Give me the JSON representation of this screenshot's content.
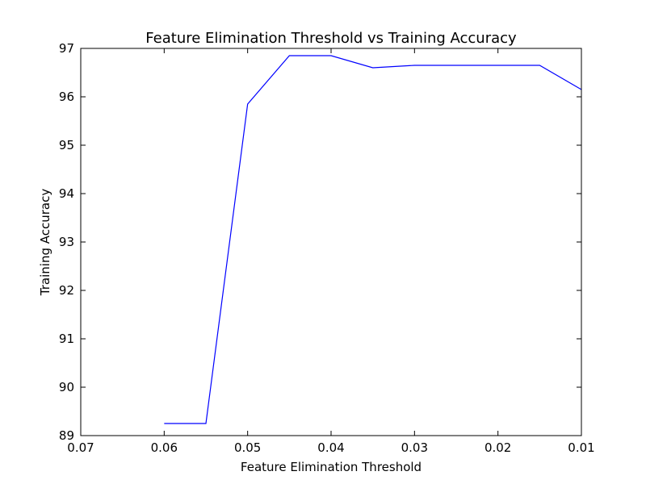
{
  "chart_data": {
    "type": "line",
    "title": "Feature Elimination Threshold vs Training Accuracy",
    "xlabel": "Feature Elimination Threshold",
    "ylabel": "Training Accuracy",
    "xlim": [
      0.07,
      0.01
    ],
    "ylim": [
      89,
      97
    ],
    "x_axis_inverted": true,
    "xticks": [
      0.07,
      0.06,
      0.05,
      0.04,
      0.03,
      0.02,
      0.01
    ],
    "xtick_labels": [
      "0.07",
      "0.06",
      "0.05",
      "0.04",
      "0.03",
      "0.02",
      "0.01"
    ],
    "yticks": [
      89,
      90,
      91,
      92,
      93,
      94,
      95,
      96,
      97
    ],
    "ytick_labels": [
      "89",
      "90",
      "91",
      "92",
      "93",
      "94",
      "95",
      "96",
      "97"
    ],
    "grid": false,
    "series": [
      {
        "color": "#0000ff",
        "x": [
          0.06,
          0.055,
          0.05,
          0.045,
          0.04,
          0.035,
          0.03,
          0.025,
          0.02,
          0.015,
          0.01
        ],
        "y": [
          89.25,
          89.25,
          95.85,
          96.85,
          96.85,
          96.6,
          96.65,
          96.65,
          96.65,
          96.65,
          96.15
        ]
      }
    ]
  }
}
